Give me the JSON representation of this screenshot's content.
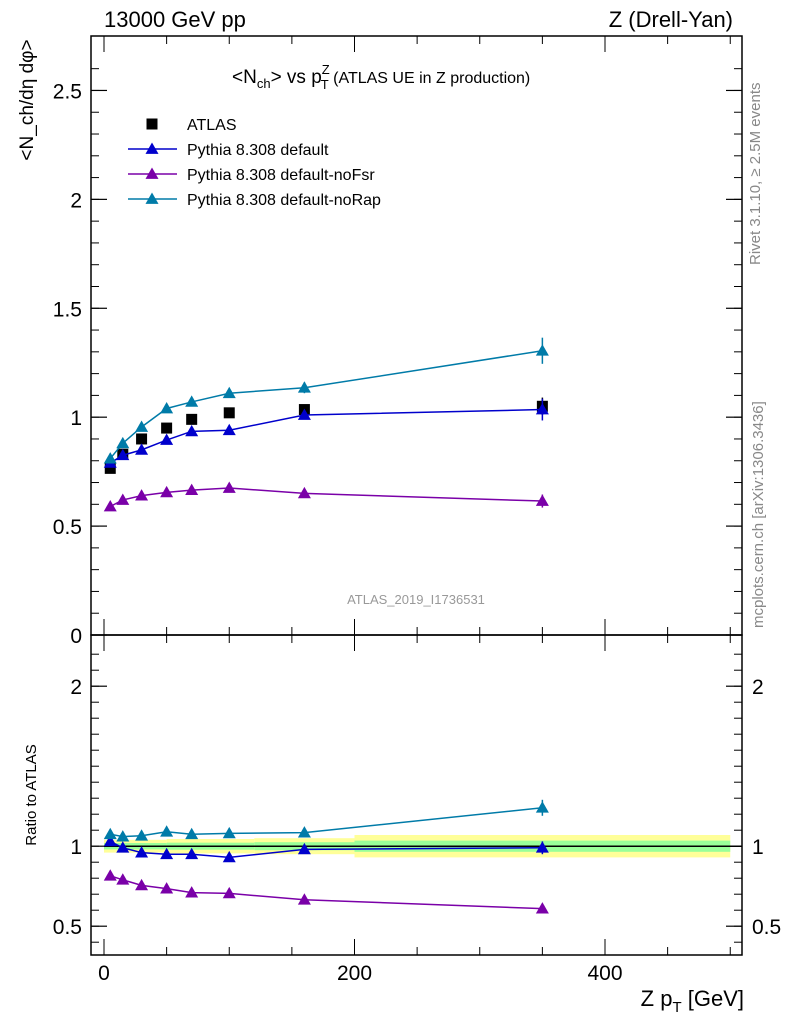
{
  "header": {
    "left": "13000 GeV pp",
    "right": "Z (Drell-Yan)"
  },
  "side": {
    "rivet": "Rivet 3.1.10, ≥ 2.5M events",
    "mcplots": "mcplots.cern.ch [arXiv:1306.3436]"
  },
  "watermark": "ATLAS_2019_I1736531",
  "chart_data": [
    {
      "type": "line",
      "panel": "main",
      "title": "<N_ch> vs p_T^Z (ATLAS UE in Z production)",
      "title_main": "<N",
      "title_sub1": "ch",
      "title_mid": "> vs p",
      "title_sup": "Z",
      "title_sub2": "T",
      "title_rest": " (ATLAS UE in Z production)",
      "ylabel": "<N_ch/dη dφ>",
      "xlim": [
        -15,
        505
      ],
      "ylim": [
        0,
        2.75
      ],
      "yticks": [
        0,
        0.5,
        1,
        1.5,
        2,
        2.5
      ],
      "ytick_labels": [
        "0",
        "0.5",
        "1",
        "1.5",
        "2",
        "2.5"
      ],
      "grid": false,
      "legend_position": "top-left",
      "x": [
        5,
        15,
        30,
        50,
        70,
        100,
        160,
        350
      ],
      "series": [
        {
          "name": "ATLAS",
          "color": "#000000",
          "marker": "square",
          "line": false,
          "values": [
            0.765,
            0.83,
            0.9,
            0.95,
            0.99,
            1.02,
            1.035,
            1.05
          ],
          "errors": [
            0.01,
            0.01,
            0.01,
            0.01,
            0.01,
            0.01,
            0.015,
            0.04
          ]
        },
        {
          "name": "Pythia 8.308 default",
          "color": "#0000cc",
          "marker": "triangle",
          "line": true,
          "values": [
            0.79,
            0.825,
            0.85,
            0.895,
            0.935,
            0.94,
            1.01,
            1.035
          ],
          "errors": [
            0.005,
            0.005,
            0.005,
            0.01,
            0.01,
            0.01,
            0.02,
            0.05
          ]
        },
        {
          "name": "Pythia 8.308 default-noFsr",
          "color": "#7a00a8",
          "marker": "triangle",
          "line": true,
          "values": [
            0.59,
            0.62,
            0.64,
            0.655,
            0.665,
            0.675,
            0.65,
            0.615
          ],
          "errors": [
            0.005,
            0.005,
            0.005,
            0.005,
            0.005,
            0.01,
            0.01,
            0.03
          ]
        },
        {
          "name": "Pythia 8.308 default-noRap",
          "color": "#007ba8",
          "marker": "triangle",
          "line": true,
          "values": [
            0.81,
            0.88,
            0.955,
            1.04,
            1.07,
            1.11,
            1.135,
            1.305
          ],
          "errors": [
            0.005,
            0.005,
            0.005,
            0.01,
            0.01,
            0.01,
            0.025,
            0.06
          ]
        }
      ]
    },
    {
      "type": "line",
      "panel": "ratio",
      "ylabel": "Ratio to ATLAS",
      "xlabel": "Z p_T [GeV]",
      "xlabel_main": "Z p",
      "xlabel_sub": "T",
      "xlabel_unit": " [GeV]",
      "xlim": [
        -15,
        505
      ],
      "ylim": [
        0.32,
        2.32
      ],
      "yticks": [
        0.5,
        1,
        2
      ],
      "ytick_labels": [
        "0.5",
        "1",
        "2"
      ],
      "xticks": [
        0,
        200,
        400
      ],
      "xtick_labels": [
        "0",
        "200",
        "400"
      ],
      "reference_line": 1,
      "uncertainty_bands": [
        {
          "x": [
            0,
            50,
            120,
            200,
            500
          ],
          "lo_outer": [
            0.96,
            0.955,
            0.95,
            0.93,
            0.93
          ],
          "hi_outer": [
            1.04,
            1.045,
            1.05,
            1.07,
            1.07
          ],
          "lo_inner": [
            0.98,
            0.978,
            0.975,
            0.965,
            0.965
          ],
          "hi_inner": [
            1.02,
            1.022,
            1.025,
            1.035,
            1.035
          ]
        }
      ],
      "band_colors": {
        "outer": "#ffff99",
        "inner": "#99ff99"
      },
      "x": [
        5,
        15,
        30,
        50,
        70,
        100,
        160,
        350
      ],
      "series": [
        {
          "name": "Pythia 8.308 default",
          "color": "#0000cc",
          "values": [
            1.03,
            0.99,
            0.96,
            0.95,
            0.95,
            0.93,
            0.98,
            0.99
          ],
          "errors": [
            0.01,
            0.01,
            0.01,
            0.01,
            0.01,
            0.01,
            0.02,
            0.04
          ]
        },
        {
          "name": "Pythia 8.308 default-noFsr",
          "color": "#7a00a8",
          "values": [
            0.815,
            0.79,
            0.755,
            0.735,
            0.71,
            0.705,
            0.665,
            0.61
          ],
          "errors": [
            0.01,
            0.01,
            0.01,
            0.01,
            0.01,
            0.01,
            0.015,
            0.03
          ]
        },
        {
          "name": "Pythia 8.308 default-noRap",
          "color": "#007ba8",
          "values": [
            1.075,
            1.06,
            1.065,
            1.09,
            1.075,
            1.08,
            1.085,
            1.24
          ],
          "errors": [
            0.01,
            0.01,
            0.01,
            0.01,
            0.01,
            0.01,
            0.02,
            0.05
          ]
        }
      ]
    }
  ]
}
